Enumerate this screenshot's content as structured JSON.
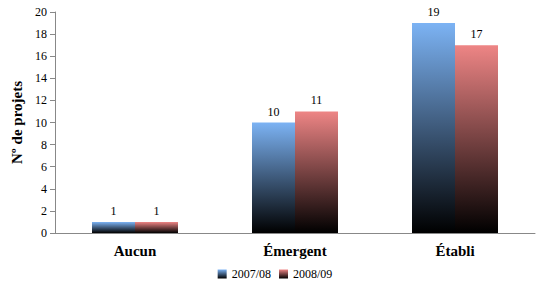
{
  "chart_data": {
    "type": "bar",
    "categories": [
      "Aucun",
      "Émergent",
      "Établi"
    ],
    "series": [
      {
        "name": "2007/08",
        "color": "#7cb3f4",
        "values": [
          1,
          10,
          19
        ]
      },
      {
        "name": "2008/09",
        "color": "#ee8585",
        "values": [
          1,
          11,
          17
        ]
      }
    ],
    "y_label": "Nº de projets",
    "ylim": [
      0,
      20
    ],
    "yticks": [
      0,
      2,
      4,
      6,
      8,
      10,
      12,
      14,
      16,
      18,
      20
    ],
    "grid": false,
    "legend": "bottom",
    "data_labels": true
  }
}
